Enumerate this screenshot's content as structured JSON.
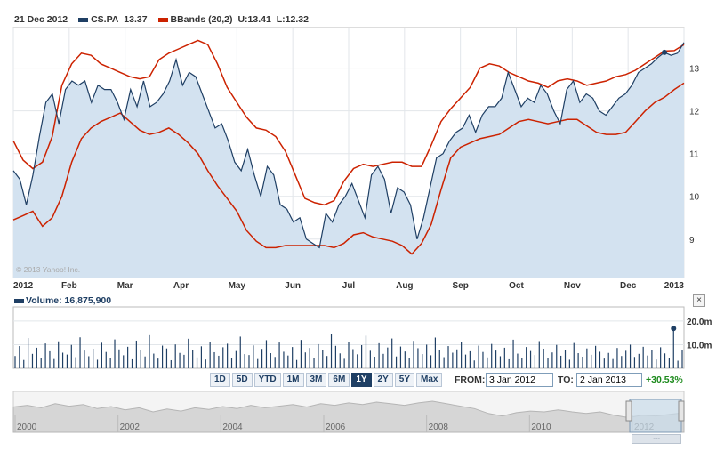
{
  "legend": {
    "date": "21 Dec 2012",
    "series1_label": "CS.PA",
    "series1_value": "13.37",
    "series2_label": "BBands (20,2)",
    "series2_upper": "U:13.41",
    "series2_lower": "L:12.32"
  },
  "watermark": "© 2013 Yahoo! Inc.",
  "volume_legend": "Volume: 16,875,900",
  "close_button": "×",
  "range_buttons": [
    "1D",
    "5D",
    "YTD",
    "1M",
    "3M",
    "6M",
    "1Y",
    "2Y",
    "5Y",
    "Max"
  ],
  "active_range": "1Y",
  "from_label": "FROM:",
  "from_value": "3 Jan 2012",
  "to_label": "TO:",
  "to_value": "2 Jan 2013",
  "change_pct": "+30.53%",
  "nav_handle": "◦◦◦",
  "colors": {
    "price_line": "#1f3f64",
    "price_fill": "#d3e2f0",
    "bbands": "#cc2200",
    "volume": "#1f3f64",
    "grid": "#e2e6ea",
    "positive": "#1c8a1c",
    "nav_fill": "#d6d6d6"
  },
  "chart_data": [
    {
      "type": "line",
      "name": "price",
      "x_ticks": [
        "2012",
        "Feb",
        "Mar",
        "Apr",
        "May",
        "Jun",
        "Jul",
        "Aug",
        "Sep",
        "Oct",
        "Nov",
        "Dec",
        "2013"
      ],
      "y_ticks": [
        "9",
        "10",
        "11",
        "12",
        "13"
      ],
      "ylim": [
        8.1,
        13.95
      ],
      "series": [
        {
          "name": "CS.PA",
          "style": "area",
          "values": [
            10.6,
            10.4,
            9.8,
            10.5,
            11.4,
            12.2,
            12.4,
            11.7,
            12.5,
            12.7,
            12.6,
            12.7,
            12.2,
            12.6,
            12.5,
            12.5,
            12.2,
            11.8,
            12.5,
            12.1,
            12.7,
            12.1,
            12.2,
            12.4,
            12.7,
            13.2,
            12.6,
            12.9,
            12.8,
            12.4,
            12.0,
            11.6,
            11.7,
            11.3,
            10.8,
            10.6,
            11.1,
            10.5,
            10.0,
            10.7,
            10.5,
            9.8,
            9.7,
            9.4,
            9.5,
            9.0,
            8.9,
            8.8,
            9.6,
            9.4,
            9.8,
            10.0,
            10.3,
            9.9,
            9.5,
            10.5,
            10.7,
            10.4,
            9.6,
            10.2,
            10.1,
            9.8,
            9.0,
            9.5,
            10.2,
            10.9,
            11.0,
            11.3,
            11.5,
            11.6,
            11.9,
            11.5,
            11.9,
            12.1,
            12.1,
            12.3,
            12.9,
            12.5,
            12.1,
            12.3,
            12.2,
            12.6,
            12.4,
            12.0,
            11.7,
            12.5,
            12.7,
            12.2,
            12.4,
            12.3,
            12.0,
            11.9,
            12.1,
            12.3,
            12.4,
            12.6,
            12.9,
            13.0,
            13.1,
            13.25,
            13.37,
            13.3,
            13.35,
            13.6
          ]
        },
        {
          "name": "BBands (20,2)",
          "band": "upper",
          "values": [
            11.3,
            10.85,
            10.65,
            10.8,
            11.4,
            12.6,
            13.1,
            13.35,
            13.3,
            13.1,
            13.0,
            12.9,
            12.8,
            12.75,
            12.8,
            13.2,
            13.35,
            13.45,
            13.55,
            13.65,
            13.55,
            13.1,
            12.55,
            12.2,
            11.85,
            11.6,
            11.55,
            11.4,
            11.05,
            10.5,
            9.95,
            9.85,
            9.8,
            9.9,
            10.35,
            10.65,
            10.75,
            10.7,
            10.75,
            10.8,
            10.8,
            10.7,
            10.7,
            11.2,
            11.75,
            12.05,
            12.3,
            12.55,
            13.0,
            13.1,
            13.05,
            12.9,
            12.8,
            12.7,
            12.65,
            12.55,
            12.7,
            12.75,
            12.7,
            12.6,
            12.65,
            12.7,
            12.8,
            12.85,
            12.95,
            13.1,
            13.25,
            13.4,
            13.41,
            13.55
          ]
        },
        {
          "name": "BBands (20,2)",
          "band": "lower",
          "values": [
            9.45,
            9.55,
            9.65,
            9.3,
            9.5,
            10.0,
            10.8,
            11.35,
            11.6,
            11.75,
            11.85,
            11.95,
            11.75,
            11.55,
            11.45,
            11.5,
            11.6,
            11.45,
            11.25,
            11.0,
            10.6,
            10.25,
            9.95,
            9.65,
            9.2,
            8.95,
            8.8,
            8.8,
            8.85,
            8.85,
            8.85,
            8.85,
            8.85,
            8.8,
            8.9,
            9.1,
            9.15,
            9.05,
            9.0,
            8.95,
            8.85,
            8.65,
            8.9,
            9.35,
            10.15,
            10.9,
            11.15,
            11.25,
            11.35,
            11.4,
            11.45,
            11.6,
            11.75,
            11.8,
            11.75,
            11.7,
            11.75,
            11.8,
            11.8,
            11.65,
            11.5,
            11.45,
            11.45,
            11.5,
            11.75,
            12.0,
            12.2,
            12.32,
            12.5,
            12.65
          ]
        }
      ]
    },
    {
      "type": "bar",
      "name": "volume",
      "y_ticks": [
        "10.0m",
        "20.0m"
      ],
      "ylim": [
        0,
        26
      ],
      "series": [
        {
          "name": "Volume",
          "values": [
            5.2,
            9.4,
            3.5,
            12.8,
            6.1,
            8.7,
            4.3,
            10.5,
            7.2,
            3.9,
            11.4,
            6.6,
            5.8,
            9.9,
            4.7,
            13.1,
            7.5,
            5.1,
            8.3,
            3.6,
            10.8,
            6.9,
            4.4,
            12.2,
            8.0,
            5.5,
            9.1,
            3.8,
            11.7,
            7.7,
            5.0,
            14.0,
            6.2,
            4.1,
            9.6,
            8.4,
            3.4,
            10.1,
            6.5,
            5.7,
            12.5,
            7.9,
            4.6,
            9.3,
            3.7,
            11.1,
            6.8,
            5.3,
            8.9,
            10.4,
            4.2,
            7.3,
            13.4,
            6.0,
            5.6,
            9.7,
            3.9,
            8.2,
            11.9,
            6.4,
            4.8,
            10.9,
            7.0,
            5.4,
            9.0,
            3.5,
            12.0,
            6.7,
            8.6,
            4.5,
            10.2,
            7.6,
            5.2,
            14.5,
            9.5,
            6.3,
            4.0,
            11.3,
            8.1,
            5.9,
            9.8,
            13.8,
            7.4,
            4.9,
            10.6,
            6.1,
            8.8,
            12.6,
            5.0,
            9.2,
            7.1,
            4.3,
            11.6,
            8.5,
            6.0,
            10.0,
            5.5,
            13.0,
            7.8,
            4.7,
            9.4,
            6.6,
            8.0,
            11.0,
            5.8,
            7.2,
            3.3,
            9.6,
            6.9,
            4.6,
            10.3,
            7.5,
            5.1,
            8.7,
            3.8,
            12.1,
            6.2,
            4.4,
            9.0,
            7.3,
            5.6,
            11.5,
            8.3,
            4.2,
            6.7,
            9.9,
            5.3,
            7.9,
            3.6,
            10.7,
            6.4,
            4.9,
            8.4,
            5.7,
            9.5,
            7.0,
            4.1,
            6.5,
            3.9,
            8.6,
            5.2,
            7.4,
            10.0,
            4.8,
            6.1,
            9.1,
            5.4,
            7.7,
            3.7,
            8.9,
            6.3,
            4.5,
            16.88,
            3.2,
            7.6
          ]
        }
      ]
    },
    {
      "type": "area",
      "name": "history-navigator",
      "x_ticks": [
        "2000",
        "2002",
        "2004",
        "2006",
        "2008",
        "2010",
        "2012"
      ],
      "series": [
        {
          "name": "CS.PA",
          "values": [
            0.62,
            0.66,
            0.6,
            0.7,
            0.64,
            0.68,
            0.58,
            0.63,
            0.55,
            0.6,
            0.5,
            0.57,
            0.52,
            0.6,
            0.56,
            0.63,
            0.58,
            0.66,
            0.6,
            0.64,
            0.68,
            0.62,
            0.7,
            0.66,
            0.72,
            0.68,
            0.74,
            0.7,
            0.66,
            0.72,
            0.76,
            0.7,
            0.64,
            0.58,
            0.46,
            0.4,
            0.48,
            0.52,
            0.5,
            0.55,
            0.5,
            0.46,
            0.5,
            0.42,
            0.36,
            0.42,
            0.4,
            0.44,
            0.48
          ]
        }
      ]
    }
  ]
}
